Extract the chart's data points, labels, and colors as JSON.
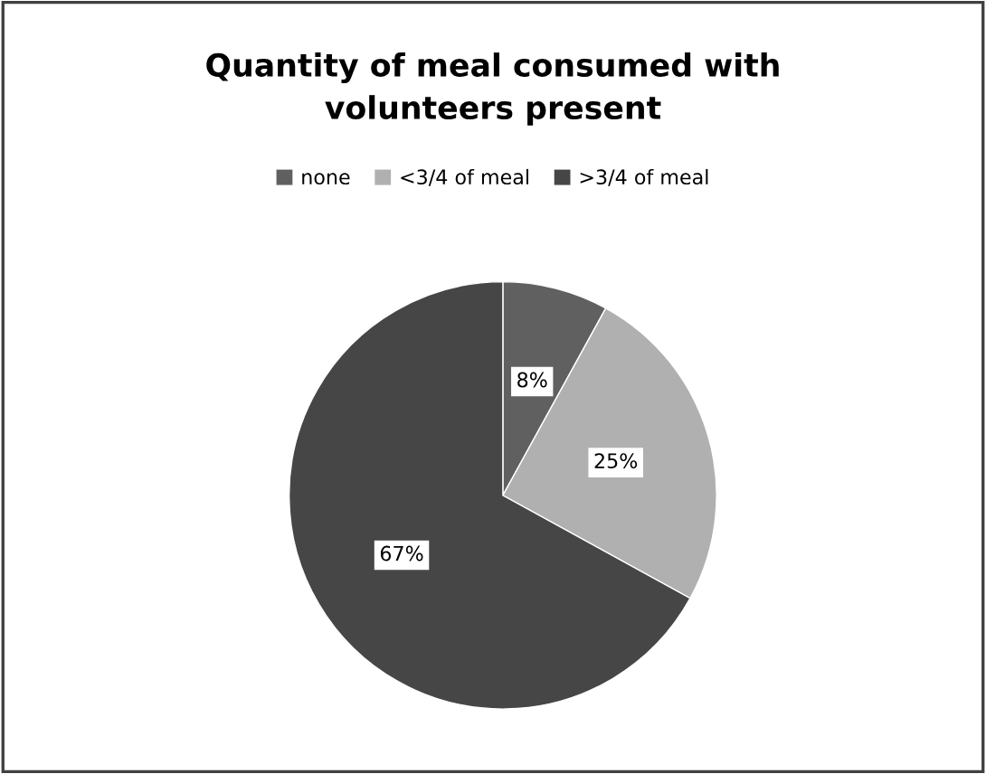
{
  "chart_data": {
    "type": "pie",
    "title": "Quantity of meal consumed with\nvolunteers present",
    "categories": [
      "none",
      "<3/4 of meal",
      ">3/4 of meal"
    ],
    "values": [
      8,
      25,
      67
    ],
    "colors": [
      "#606060",
      "#b0b0b0",
      "#464646"
    ],
    "value_labels": [
      "8%",
      "25%",
      "67%"
    ],
    "legend": "top"
  }
}
